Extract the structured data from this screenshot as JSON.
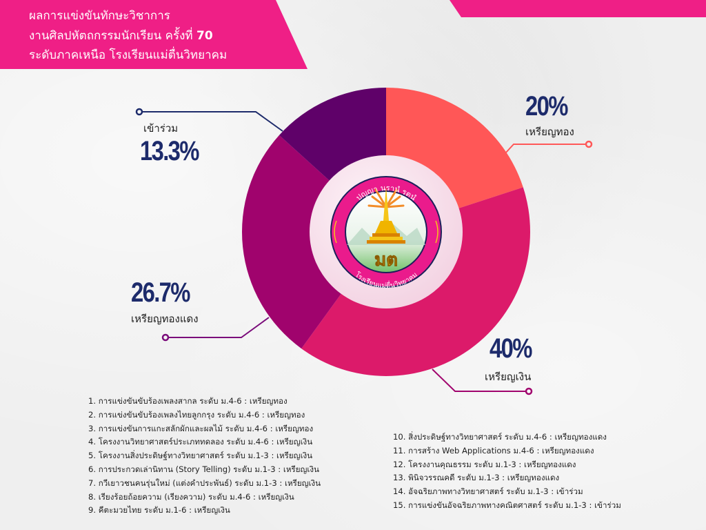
{
  "header": {
    "title_lines": [
      "ผลการแข่งขันทักษะวิชาการ",
      "งานศิลปหัตถกรรมนักเรียน ครั้งที่",
      "ระดับภาคเหนือ  โรงเรียนแม่ตื่นวิทยาคม"
    ],
    "edition_number": "70",
    "banner_color": "#ef1f86"
  },
  "logo": {
    "top_text": "ปญญา นรานํ รตนํ",
    "bottom_text": "โรงเรียนแม่ตื่นวิทยาคม",
    "monogram": "มต"
  },
  "chart_data": {
    "type": "pie",
    "style": "donut",
    "start": "top",
    "direction": "clockwise",
    "slices": [
      {
        "label": "เหรียญทอง",
        "value": 20,
        "display": "20%",
        "color": "#ff5757"
      },
      {
        "label": "เหรียญเงิน",
        "value": 40,
        "display": "40%",
        "color": "#dc1a6a"
      },
      {
        "label": "เหรียญทองแดง",
        "value": 26.7,
        "display": "26.7%",
        "color": "#a0036d"
      },
      {
        "label": "เข้าร่วม",
        "value": 13.3,
        "display": "13.3%",
        "color": "#5f0169"
      }
    ],
    "legend": "callouts"
  },
  "results": {
    "left_column": [
      "1. การแข่งขันขับร้องเพลงสากล ระดับ ม.4-6 :  เหรียญทอง",
      "2. การแข่งขันขับร้องเพลงไทยลูกกรุง ระดับ ม.4-6 :  เหรียญทอง",
      "3. การแข่งขันการแกะสลักผักและผลไม้ ระดับ ม.4-6 :  เหรียญทอง",
      "4. โครงงานวิทยาศาสตร์ประเภททดลอง ระดับ ม.4-6   :  เหรียญเงิน",
      "5. โครงงานสิ่งประดิษฐ์ทางวิทยาศาสตร์  ระดับ ม.1-3 :  เหรียญเงิน",
      "6. การประกวดเล่านิทาน  (Story Telling) ระดับ ม.1-3  :  เหรียญเงิน",
      "7. กวีเยาวชนคนรุ่นใหม่ (แต่งคำประพันธ์) ระดับ ม.1-3  :  เหรียญเงิน",
      "8. เรียงร้อยถ้อยความ (เรียงความ)  ระดับ ม.4-6 :  เหรียญเงิน",
      "9. คีตะมวยไทย ระดับ ม.1-6 :  เหรียญเงิน"
    ],
    "right_column": [
      "10. สิ่งประดิษฐ์ทางวิทยาศาสตร์  ระดับ ม.4-6   :  เหรียญทองแดง",
      "11. การสร้าง Web Applications ม.4-6 :  เหรียญทองแดง",
      "12. โครงงานคุณธรรม ระดับ ม.1-3  :  เหรียญทองแดง",
      "13. พินิจวรรณคดี  ระดับ ม.1-3   :  เหรียญทองแดง",
      "14. อัจฉริยภาพทางวิทยาศาสตร์ ระดับ ม.1-3  :  เข้าร่วม",
      "15. การแข่งขันอัจฉริยภาพทางคณิตศาสตร์ ระดับ ม.1-3 :  เข้าร่วม"
    ]
  }
}
